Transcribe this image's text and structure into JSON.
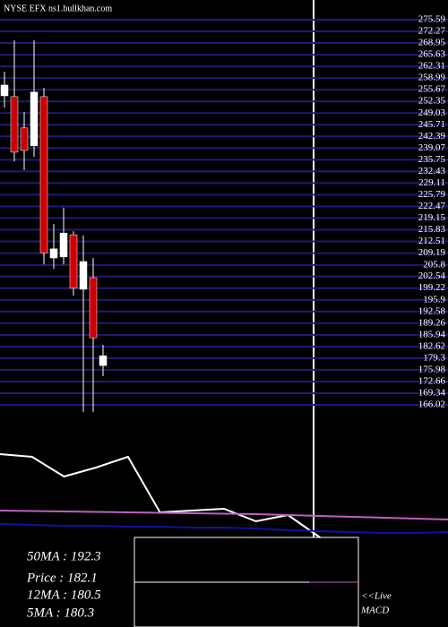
{
  "chart_data": [
    {
      "type": "candlestick",
      "title": "NYSE EFX ns1.bullkhan.com",
      "categories": [
        null,
        null,
        null,
        null,
        null,
        null,
        null,
        null,
        null,
        null,
        null
      ],
      "open": [
        253.93,
        253.7,
        244.8,
        239.7,
        253.7,
        207.8,
        208.1,
        214.4,
        198.9,
        202.2,
        177.2
      ],
      "high": [
        260.8,
        269.7,
        249.3,
        269.7,
        256.2,
        217.5,
        222.1,
        215.4,
        214.2,
        207.8,
        183.1
      ],
      "low": [
        250.6,
        235.3,
        232.8,
        236.6,
        206.0,
        204.7,
        206.0,
        197.1,
        164.0,
        164.0,
        174.2
      ],
      "close": [
        257.0,
        237.9,
        238.4,
        255.0,
        209.3,
        210.4,
        214.9,
        199.2,
        206.8,
        185.1,
        180.0
      ],
      "up_color": "#ffffff",
      "down_color": "#cc0000",
      "grid_color": "#1c1c7a",
      "ylim": [
        166.02,
        275.59
      ],
      "yticks": [
        275.59,
        272.27,
        268.95,
        265.63,
        262.31,
        258.99,
        255.67,
        252.35,
        249.03,
        245.71,
        242.39,
        239.07,
        235.75,
        232.43,
        229.11,
        225.79,
        222.47,
        219.15,
        215.83,
        212.51,
        209.19,
        205.8,
        202.54,
        199.22,
        195.9,
        192.58,
        189.26,
        185.94,
        182.62,
        179.3,
        175.98,
        172.66,
        169.34,
        166.02
      ],
      "grid": true
    },
    {
      "type": "line",
      "ylim": [
        0,
        100
      ],
      "series": [
        {
          "color": "#ffffff",
          "values": [
            93,
            90,
            68,
            78,
            90,
            28,
            30,
            32,
            18,
            25,
            0,
            null,
            null,
            null,
            null
          ]
        },
        {
          "color": "#c060c0",
          "values": [
            30,
            29.5,
            29,
            28.5,
            28,
            27.5,
            27,
            26.5,
            26,
            25,
            24,
            23,
            22,
            21,
            20
          ]
        },
        {
          "color": "#1010a0",
          "values": [
            15,
            14,
            13,
            13,
            12,
            12,
            11,
            11,
            10,
            8,
            7,
            6,
            5,
            5,
            6
          ]
        }
      ],
      "stats": [
        "50MA : 192.3",
        "Price : 182.1",
        "12MA : 180.5",
        "5MA : 180.3"
      ],
      "notes": [
        "<<Live",
        "MACD"
      ]
    }
  ]
}
